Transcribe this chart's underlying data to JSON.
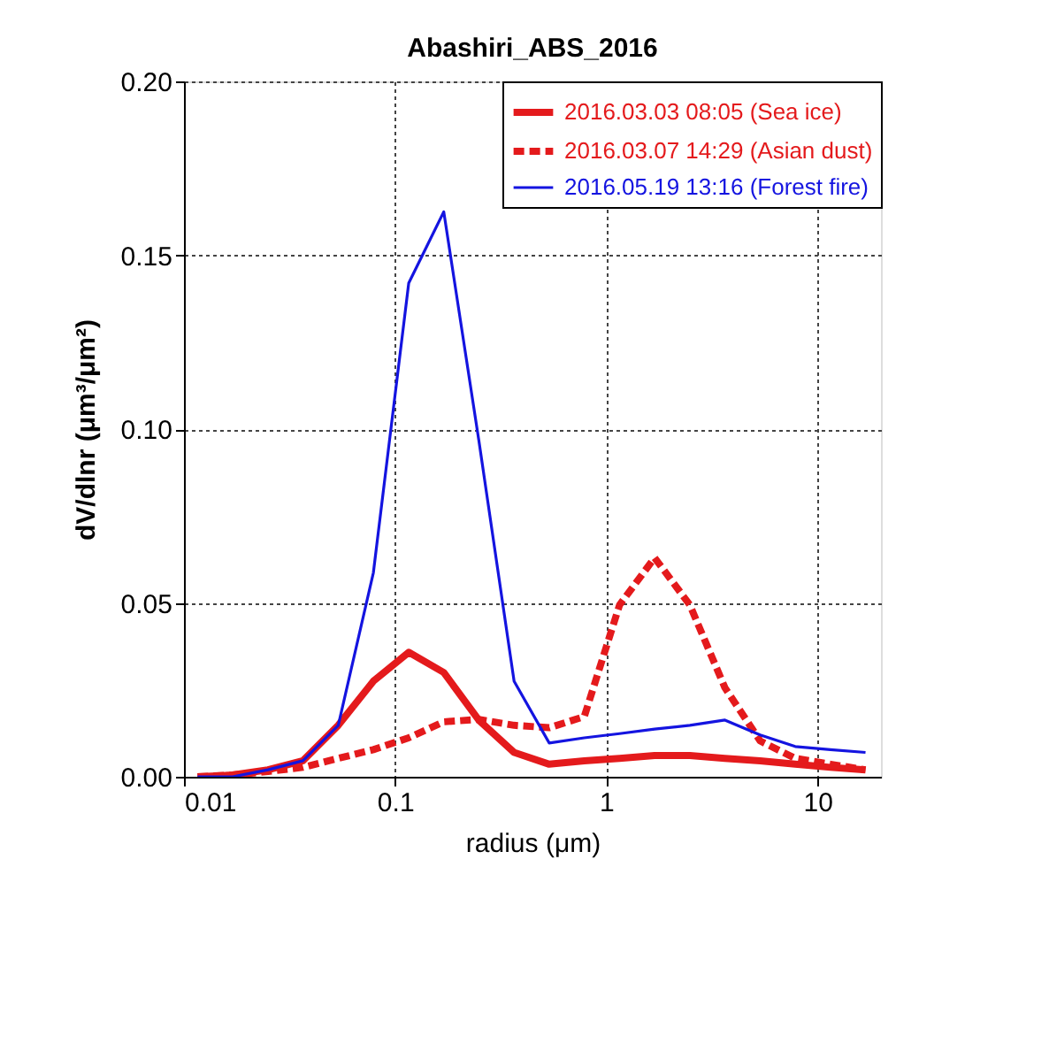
{
  "chart_data": {
    "type": "line",
    "title": "Abashiri_ABS_2016",
    "xlabel": "radius (μm)",
    "ylabel": "dV/dlnr (μm³/μm²)",
    "x": [
      0.0116,
      0.017,
      0.025,
      0.0366,
      0.0538,
      0.0789,
      0.116,
      0.17,
      0.249,
      0.366,
      0.537,
      0.787,
      1.156,
      1.694,
      2.489,
      3.648,
      5.358,
      7.852,
      11.53,
      16.9
    ],
    "series": [
      {
        "name": "2016.03.03 08:05 (Sea ice)",
        "color": "#e41a1c",
        "line_style": "solid",
        "values": [
          0.0,
          0.0005,
          0.002,
          0.0046,
          0.0148,
          0.0275,
          0.0358,
          0.03,
          0.0163,
          0.007,
          0.0036,
          0.0046,
          0.0053,
          0.0061,
          0.0061,
          0.0053,
          0.0046,
          0.0036,
          0.0027,
          0.002
        ]
      },
      {
        "name": "2016.03.07 14:29 (Asian dust)",
        "color": "#e41a1c",
        "line_style": "dashed",
        "values": [
          0.0,
          0.0005,
          0.0015,
          0.0027,
          0.0053,
          0.0078,
          0.0112,
          0.0158,
          0.0165,
          0.0148,
          0.0141,
          0.0173,
          0.0494,
          0.063,
          0.0494,
          0.0256,
          0.0103,
          0.0053,
          0.0036,
          0.002
        ]
      },
      {
        "name": "2016.05.19 13:16 (Forest fire)",
        "color": "#1414e0",
        "line_style": "solid",
        "values": [
          0.0,
          0.0,
          0.002,
          0.0046,
          0.0148,
          0.0587,
          0.142,
          0.1625,
          0.0969,
          0.0275,
          0.0097,
          0.0112,
          0.0124,
          0.0137,
          0.0148,
          0.0163,
          0.012,
          0.0087,
          0.0078,
          0.007
        ]
      }
    ],
    "log": "x",
    "xlim": [
      0.01,
      20
    ],
    "xticks": [
      0.01,
      0.1,
      1,
      10
    ],
    "ylim": [
      0,
      0.2
    ],
    "yticks": [
      {
        "value": 0,
        "label": "0.00"
      },
      {
        "value": 0.05,
        "label": "0.05"
      },
      {
        "value": 0.1,
        "label": "0.10"
      },
      {
        "value": 0.15,
        "label": "0.15"
      },
      {
        "value": 0.2,
        "label": "0.20"
      }
    ],
    "grid": true,
    "legend": "top right",
    "marker": "none"
  }
}
